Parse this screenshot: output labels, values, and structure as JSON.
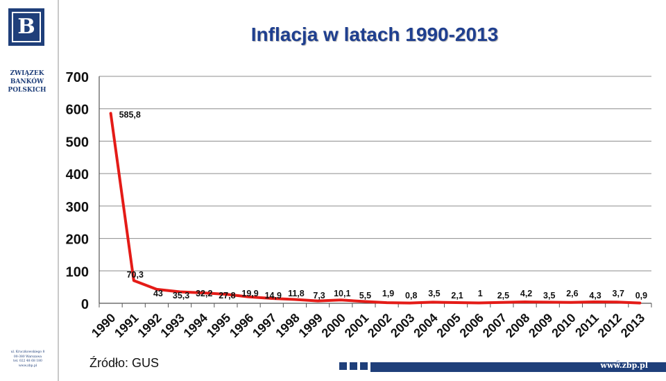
{
  "header": {
    "title": "Inflacja w latach 1990-2013",
    "logo_glyph": "B",
    "org_name": [
      "ZWIĄZEK",
      "BANKÓW",
      "POLSKICH"
    ]
  },
  "footer": {
    "source": "Źródło: GUS",
    "url": "www.zbp.pl",
    "page_number": "5",
    "address": [
      "ul. Kruczkowskiego 8",
      "00-380 Warszawa",
      "tel. 022 48 68 180",
      "www.zbp.pl"
    ]
  },
  "colors": {
    "line": "#e41b17",
    "brand": "#1f3f7a",
    "title": "#1f3f8f",
    "grid": "#8c8c8c"
  },
  "chart_data": {
    "type": "line",
    "title": "",
    "xlabel": "",
    "ylabel": "",
    "ylim": [
      0,
      700
    ],
    "yticks": [
      "0",
      "100",
      "200",
      "300",
      "400",
      "500",
      "600",
      "700"
    ],
    "grid": true,
    "categories": [
      "1990",
      "1991",
      "1992",
      "1993",
      "1994",
      "1995",
      "1996",
      "1997",
      "1998",
      "1999",
      "2000",
      "2001",
      "2002",
      "2003",
      "2004",
      "2005",
      "2006",
      "2007",
      "2008",
      "2009",
      "2010",
      "2011",
      "2012",
      "2013"
    ],
    "values": [
      585.8,
      70.3,
      43,
      35.3,
      32.2,
      27.8,
      19.9,
      14.9,
      11.8,
      7.3,
      10.1,
      5.5,
      1.9,
      0.8,
      3.5,
      2.1,
      1,
      2.5,
      4.2,
      3.5,
      2.6,
      4.3,
      3.7,
      0.9
    ],
    "data_labels": [
      "585,8",
      "70,3",
      "43",
      "35,3",
      "32,2",
      "27,8",
      "19,9",
      "14,9",
      "11,8",
      "7,3",
      "10,1",
      "5,5",
      "1,9",
      "0,8",
      "3,5",
      "2,1",
      "1",
      "2,5",
      "4,2",
      "3,5",
      "2,6",
      "4,3",
      "3,7",
      "0,9"
    ]
  }
}
